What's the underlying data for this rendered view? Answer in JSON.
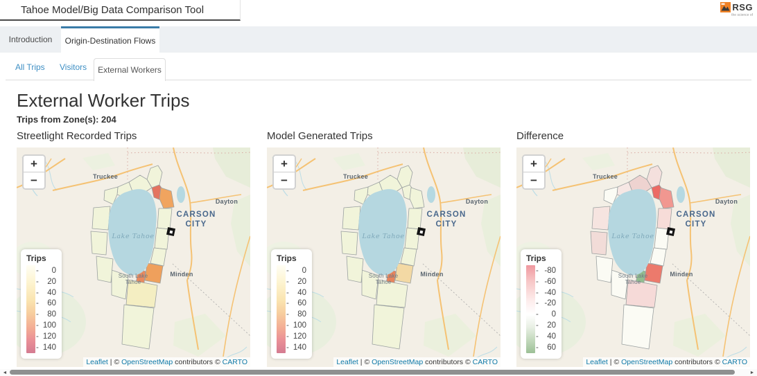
{
  "header": {
    "title": "Tahoe Model/Big Data Comparison Tool",
    "logo_text": "RSG",
    "logo_tagline": "the science of"
  },
  "navbar": {
    "tabs": [
      {
        "label": "Introduction",
        "active": false
      },
      {
        "label": "Origin-Destination Flows",
        "active": true
      }
    ]
  },
  "subtabs": {
    "tabs": [
      {
        "label": "All Trips",
        "active": false
      },
      {
        "label": "Visitors",
        "active": false
      },
      {
        "label": "External Workers",
        "active": true
      }
    ]
  },
  "page": {
    "heading": "External Worker Trips",
    "zone_info": "Trips from Zone(s): 204"
  },
  "map_labels": {
    "truckee": "Truckee",
    "dayton": "Dayton",
    "carson_city_line1": "CARSON",
    "carson_city_line2": "CITY",
    "lake_tahoe": "Lake Tahoe",
    "minden": "Minden",
    "south_lake_tahoe_line1": "South Lake",
    "south_lake_tahoe_line2": "Tahoe"
  },
  "zoom_control": {
    "zoom_in_label": "+",
    "zoom_out_label": "−"
  },
  "attribution": {
    "leaflet": "Leaflet",
    "separator": "|",
    "copyright_1": "©",
    "openstreetmap": "OpenStreetMap",
    "contributors": "contributors",
    "copyright_2": "©",
    "carto": "CARTO"
  },
  "maps": [
    {
      "title": "Streetlight Recorded Trips",
      "legend": {
        "title": "Trips",
        "labels": [
          "0",
          "20",
          "40",
          "60",
          "80",
          "100",
          "120",
          "140"
        ],
        "gradient": [
          "#fffef4 0%",
          "#fdf4d0 20%",
          "#fae4b0 40%",
          "#f7cd9e 55%",
          "#f3ab94 72%",
          "#e98e96 86%",
          "#d47c91 100%"
        ]
      },
      "zones": {
        "default": "#f1f4da",
        "incline": "#e4745f",
        "northeast": "#f0a45f",
        "stateline": "#efa05c",
        "south_lake_tahoe": "#e98a5f",
        "south_1": "#f4eec2"
      }
    },
    {
      "title": "Model Generated Trips",
      "legend": {
        "title": "Trips",
        "labels": [
          "0",
          "20",
          "40",
          "60",
          "80",
          "100",
          "120",
          "140"
        ],
        "gradient": [
          "#fffef4 0%",
          "#fdf4d0 20%",
          "#fae4b0 40%",
          "#f7cd9e 55%",
          "#f3ab94 72%",
          "#e98e96 86%",
          "#d47c91 100%"
        ]
      },
      "zones": {
        "default": "#f1f4da",
        "stateline": "#f3d9a4",
        "south_lake_tahoe": "#e8845c"
      }
    },
    {
      "title": "Difference",
      "legend": {
        "title": "Trips",
        "labels": [
          "-80",
          "-60",
          "-40",
          "-20",
          "0",
          "20",
          "40",
          "60"
        ],
        "gradient": [
          "#f0989f 0%",
          "#f7c6c6 18%",
          "#fdeceb 40%",
          "#ffffff 56%",
          "#e9f0e5 70%",
          "#c3d9bd 85%",
          "#9cc096 100%"
        ]
      },
      "zones": {
        "default": "#fbfbf4",
        "north_spike": "#f4e0dd",
        "north_1": "#eed3d0",
        "north_2": "#f6e7e4",
        "incline": "#ec6a65",
        "northeast": "#f19790",
        "east_1": "#f7dcd8",
        "stateline": "#ec7a6c",
        "south_lake_tahoe": "#92bd90",
        "south_1": "#f6dad8",
        "west_2": "#f2dcd8",
        "west_3": "#f6e4e0"
      }
    }
  ],
  "colors": {
    "tab_accent": "#3a7ca8",
    "link_blue": "#3e8fc4",
    "attribution_link": "#0d79a8",
    "lake": "#b5d7e0",
    "map_background": "#f3efe6"
  }
}
